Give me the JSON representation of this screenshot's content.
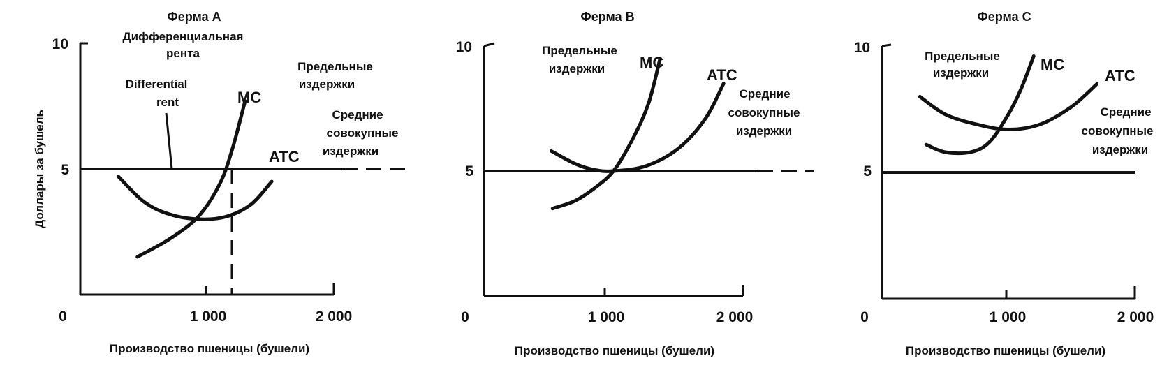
{
  "chart_data": [
    {
      "type": "line",
      "title": "Ферма А",
      "xlabel": "Производство пшеницы (бушели)",
      "ylabel": "Доллары за бушель",
      "xlim": [
        0,
        2000
      ],
      "ylim": [
        0,
        10
      ],
      "x_ticks": [
        "0",
        "1 000",
        "2 000"
      ],
      "y_ticks": [
        "5",
        "10"
      ],
      "price_line": 5,
      "dashed_x": 1180,
      "series": [
        {
          "name": "MC",
          "x": [
            450,
            700,
            930,
            1100,
            1200,
            1300
          ],
          "y": [
            1.5,
            2.2,
            3.1,
            4.4,
            5.8,
            7.7
          ]
        },
        {
          "name": "ATC",
          "x": [
            300,
            500,
            700,
            930,
            1150,
            1350,
            1510
          ],
          "y": [
            4.7,
            3.7,
            3.2,
            3.0,
            3.1,
            3.6,
            4.5
          ]
        }
      ],
      "annotations": {
        "rent": [
          "Дифференциальная",
          "рента",
          "Differential",
          "rent"
        ],
        "mc": [
          "Предельные",
          "издержки"
        ],
        "atc": [
          "Средние",
          "совокупные",
          "издержки"
        ]
      },
      "grid": false,
      "legend": "none"
    },
    {
      "type": "line",
      "title": "Ферма В",
      "xlabel": "Производство пшеницы (бушели)",
      "xlim": [
        0,
        2000
      ],
      "ylim": [
        0,
        10
      ],
      "x_ticks": [
        "0",
        "1 000",
        "2 000"
      ],
      "y_ticks": [
        "5",
        "10"
      ],
      "price_line": 5,
      "series": [
        {
          "name": "MC",
          "x": [
            530,
            700,
            850,
            1000,
            1150,
            1270,
            1360
          ],
          "y": [
            3.5,
            3.8,
            4.3,
            5.0,
            6.3,
            7.7,
            9.5
          ]
        },
        {
          "name": "ATC",
          "x": [
            520,
            700,
            850,
            1000,
            1250,
            1500,
            1710,
            1850
          ],
          "y": [
            5.8,
            5.3,
            5.05,
            5.0,
            5.2,
            5.9,
            7.1,
            8.5
          ]
        }
      ],
      "annotations": {
        "mc": [
          "Предельные",
          "издержки"
        ],
        "atc": [
          "Средние",
          "совокупные",
          "издержки"
        ]
      },
      "grid": false,
      "legend": "none"
    },
    {
      "type": "line",
      "title": "Ферма С",
      "xlabel": "Производство пшеницы (бушели)",
      "xlim": [
        0,
        2000
      ],
      "ylim": [
        0,
        10
      ],
      "x_ticks": [
        "0",
        "1 000",
        "2 000"
      ],
      "y_ticks": [
        "5",
        "10"
      ],
      "price_line": 5,
      "series": [
        {
          "name": "MC",
          "x": [
            350,
            500,
            700,
            850,
            1000,
            1100,
            1200
          ],
          "y": [
            6.1,
            5.8,
            5.8,
            6.2,
            7.3,
            8.3,
            9.6
          ]
        },
        {
          "name": "ATC",
          "x": [
            300,
            500,
            750,
            1000,
            1250,
            1500,
            1700
          ],
          "y": [
            8.0,
            7.3,
            6.9,
            6.7,
            6.9,
            7.6,
            8.5
          ]
        }
      ],
      "annotations": {
        "mc": [
          "Предельные",
          "издержки"
        ],
        "atc": [
          "Средние",
          "совокупные",
          "издержки"
        ]
      },
      "grid": false,
      "legend": "none"
    }
  ]
}
